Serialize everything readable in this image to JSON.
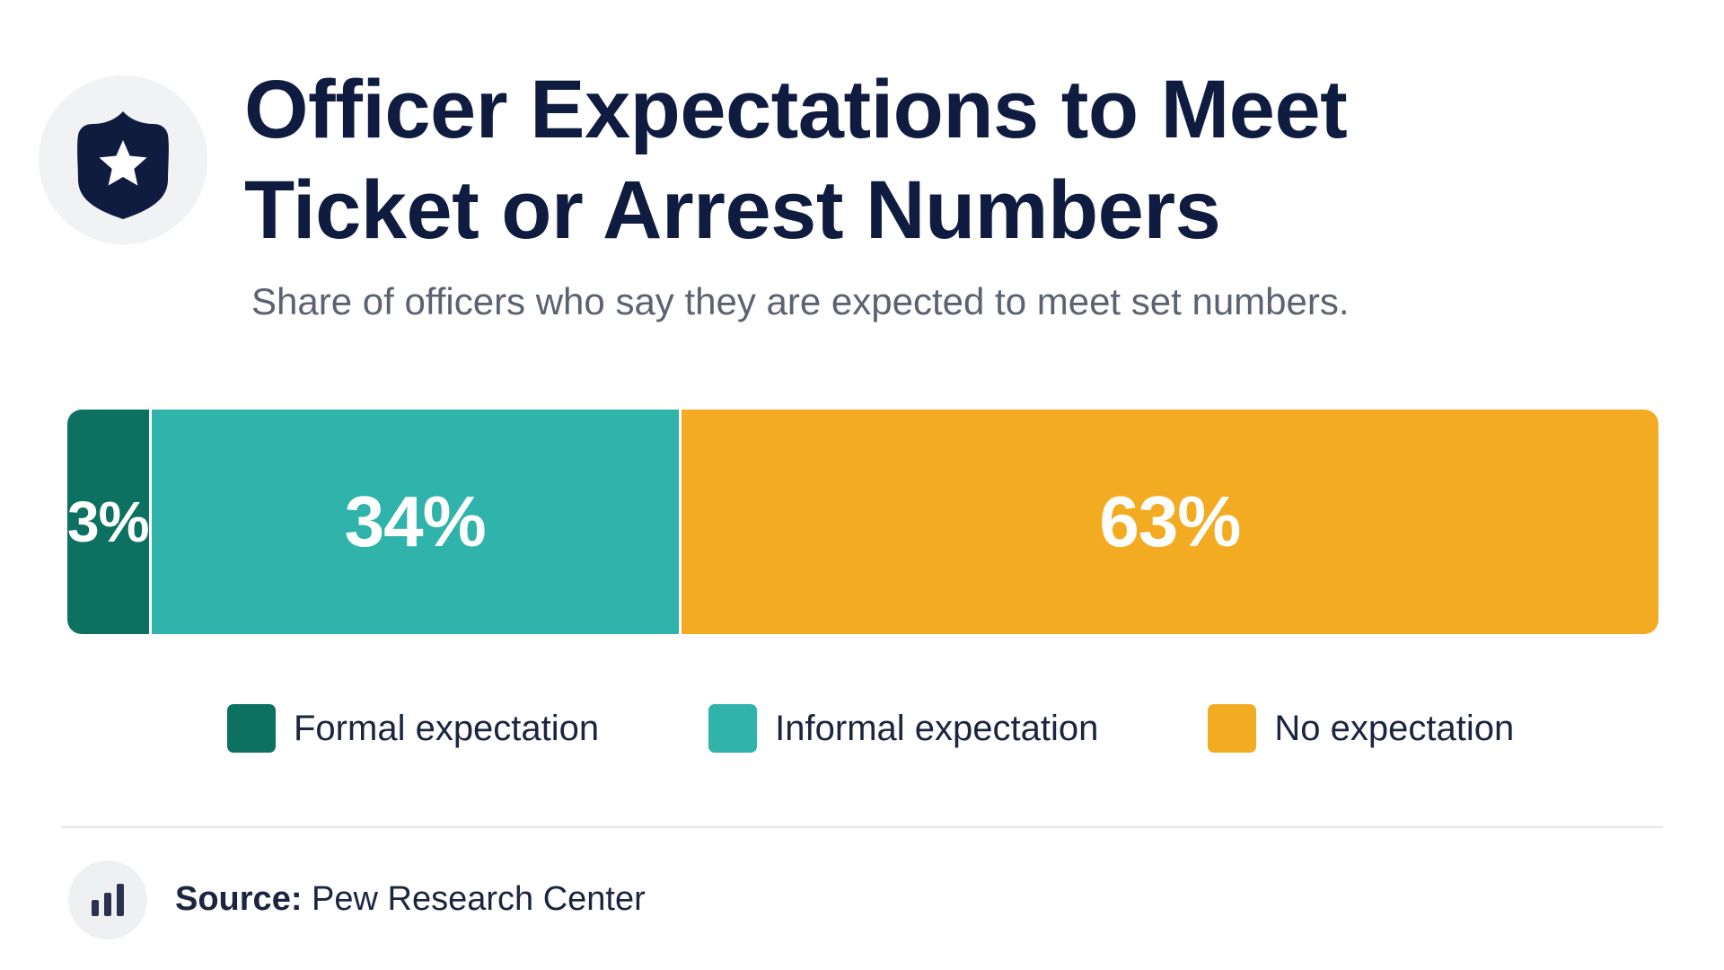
{
  "header": {
    "title_line1": "Officer Expectations to Meet",
    "title_line2": "Ticket or Arrest Numbers",
    "subtitle": "Share of officers who say they are expected to meet set numbers.",
    "badge_icon": "police-badge-star-icon"
  },
  "chart_data": {
    "type": "bar",
    "orientation": "horizontal-stacked-100",
    "categories": [
      "Formal expectation",
      "Informal expectation",
      "No expectation"
    ],
    "values": [
      3,
      34,
      63
    ],
    "unit": "%",
    "labels": [
      "3%",
      "34%",
      "63%"
    ],
    "colors": [
      "#0c7160",
      "#2fb3aa",
      "#f3ab22"
    ],
    "legend": [
      "Formal expectation",
      "Informal expectation",
      "No expectation"
    ],
    "legend_position": "bottom",
    "grid": false
  },
  "footer": {
    "source_label": "Source:",
    "source_text": "Pew Research Center",
    "source_icon": "bar-chart-icon"
  }
}
